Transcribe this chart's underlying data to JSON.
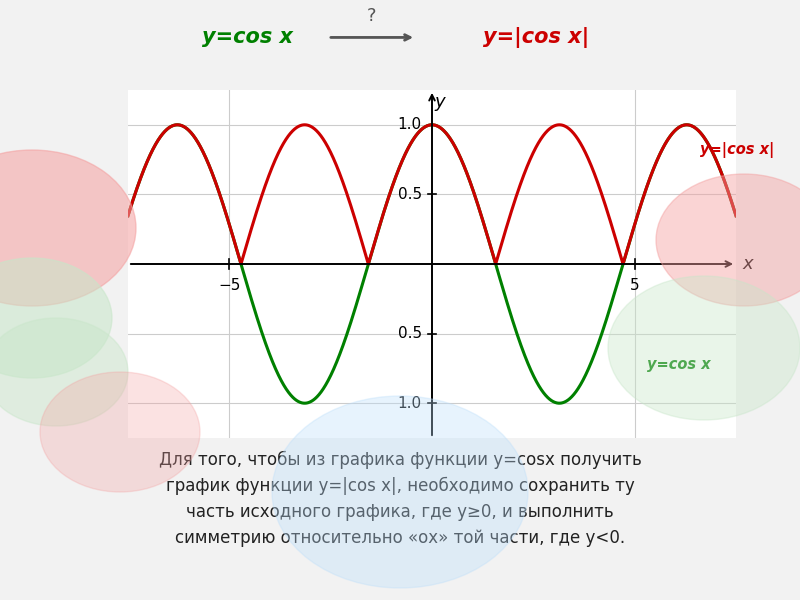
{
  "title_green": "y=cos x",
  "title_red": "y=|cos x|",
  "arrow_label": "?",
  "x_range": [
    -7.5,
    7.5
  ],
  "y_range": [
    -1.25,
    1.25
  ],
  "x_ticks_neg": [
    -5
  ],
  "x_ticks_pos": [
    5
  ],
  "y_ticks_pos": [
    0.5,
    1.0
  ],
  "y_ticks_neg": [
    -0.5,
    -1.0
  ],
  "label_cos": "y=cos x",
  "label_abs_cos": "y=|cos x|",
  "color_green": "#008000",
  "color_red": "#cc0000",
  "bg_color": "#f0f0f0",
  "plot_bg": "#ffffff",
  "text_line1": "Для того, чтобы из графика функции y=cosx получить",
  "text_line2": "график функции y=|cos x|, необходимо сохранить ту",
  "text_line3": "часть исходного графика, где y≥0, и выполнить",
  "text_line4": "симметрию относительно «ох» той части, где y<0."
}
